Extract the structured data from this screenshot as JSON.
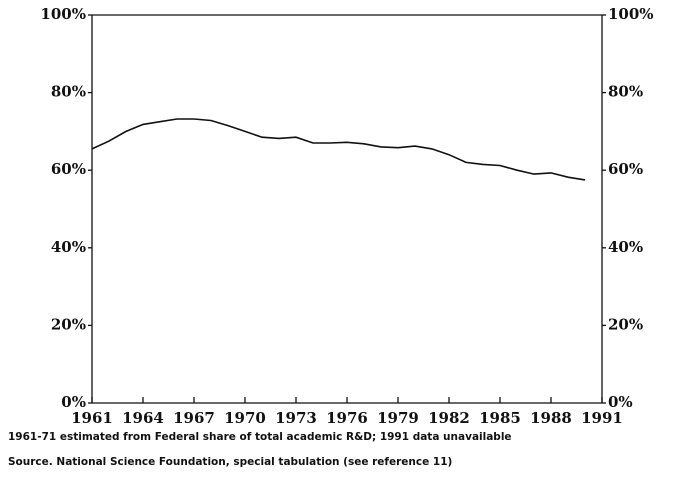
{
  "chart_data": {
    "type": "line",
    "x": [
      1961,
      1962,
      1963,
      1964,
      1965,
      1966,
      1967,
      1968,
      1969,
      1970,
      1971,
      1972,
      1973,
      1974,
      1975,
      1976,
      1977,
      1978,
      1979,
      1980,
      1981,
      1982,
      1983,
      1984,
      1985,
      1986,
      1987,
      1988,
      1989,
      1990
    ],
    "values": [
      65.5,
      67.5,
      70,
      71.8,
      72.5,
      73.2,
      73.2,
      72.8,
      71.5,
      70,
      68.5,
      68.2,
      68.5,
      67,
      67,
      67.2,
      66.8,
      66,
      65.8,
      66.2,
      65.5,
      64,
      62,
      61.5,
      61.2,
      60,
      59,
      59.3,
      58.2,
      57.5
    ],
    "color": "#111111",
    "xlim": [
      1961,
      1991
    ],
    "xticks": [
      1961,
      1964,
      1967,
      1970,
      1973,
      1976,
      1979,
      1982,
      1985,
      1988,
      1991
    ],
    "ylim": [
      0,
      100
    ],
    "yticks": [
      {
        "value": 0,
        "label": "0%"
      },
      {
        "value": 20,
        "label": "20%"
      },
      {
        "value": 40,
        "label": "40%"
      },
      {
        "value": 60,
        "label": "60%"
      },
      {
        "value": 80,
        "label": "80%"
      },
      {
        "value": 100,
        "label": "100%"
      }
    ],
    "y2lim": [
      0,
      100
    ],
    "y2ticks": [
      {
        "value": 0,
        "label": "0%"
      },
      {
        "value": 20,
        "label": "20%"
      },
      {
        "value": 40,
        "label": "40%"
      },
      {
        "value": 60,
        "label": "60%"
      },
      {
        "value": 80,
        "label": "80%"
      },
      {
        "value": 100,
        "label": "100%"
      }
    ],
    "notes": [
      "1961-71 estimated from Federal share of total academic R&D; 1991 data unavailable",
      "Source. National Science Foundation, special tabulation (see reference 11)"
    ]
  }
}
